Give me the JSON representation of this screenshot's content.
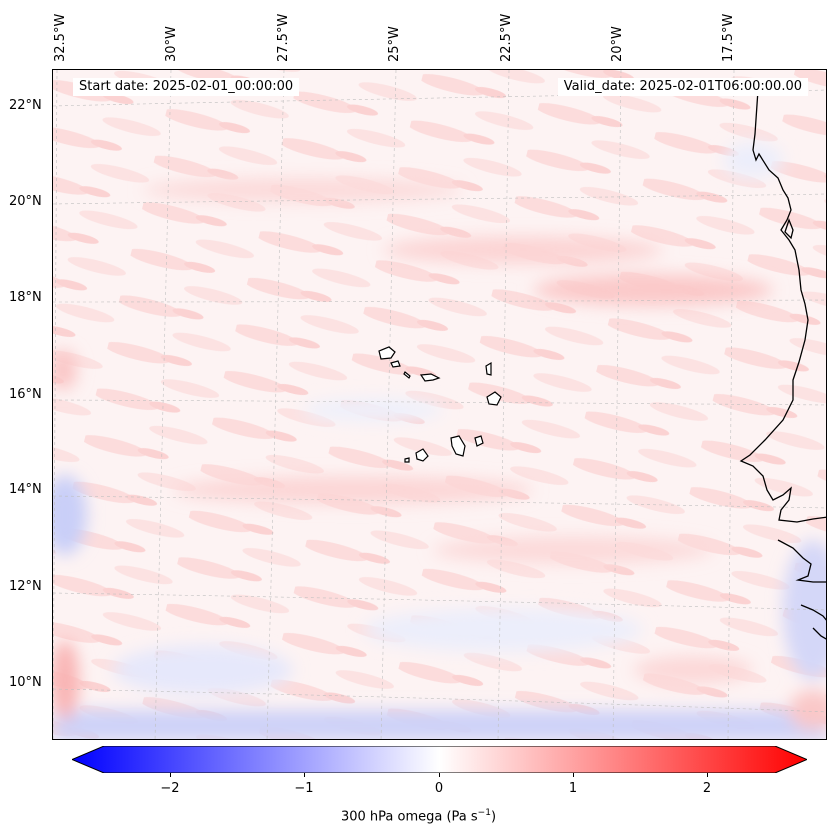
{
  "map": {
    "start_date": "Start date: 2025-02-01_00:00:00",
    "valid_date": "Valid_date: 2025-02-01T06:00:00.00",
    "lon_labels": [
      "32.5°W",
      "30°W",
      "27.5°W",
      "25°W",
      "22.5°W",
      "20°W",
      "17.5°W"
    ],
    "lat_labels": [
      "22°N",
      "20°N",
      "18°N",
      "16°N",
      "14°N",
      "12°N",
      "10°N"
    ],
    "region": "Cape Verde islands and West African coast",
    "field_colors": {
      "negative": "#0000ff",
      "neutral": "#ffffff",
      "positive": "#ff0000"
    }
  },
  "colorbar": {
    "label": "300 hPa omega (Pa s",
    "label_exponent": "−1",
    "label_close": ")",
    "ticks": [
      "−2",
      "−1",
      "0",
      "1",
      "2"
    ],
    "range": [
      -2.6,
      2.6
    ],
    "extend": "both",
    "cmap": "bwr"
  }
}
